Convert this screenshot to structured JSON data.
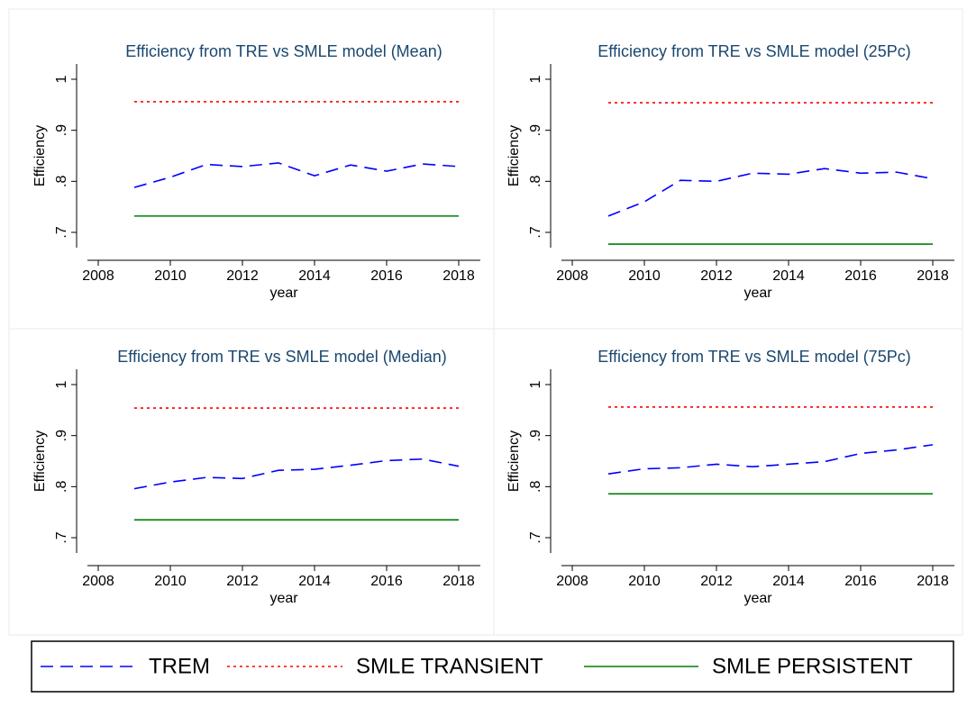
{
  "legend": {
    "items": [
      {
        "name": "TREM",
        "color": "#0000ff",
        "style": "dash"
      },
      {
        "name": "SMLE TRANSIENT",
        "color": "#ff0000",
        "style": "dot"
      },
      {
        "name": "SMLE PERSISTENT",
        "color": "#008000",
        "style": "solid"
      }
    ]
  },
  "chart_data": [
    {
      "type": "line",
      "title": "Efficiency from TRE vs SMLE model (Mean)",
      "xlabel": "year",
      "ylabel": "Efficiency",
      "x": [
        2009,
        2010,
        2011,
        2012,
        2013,
        2014,
        2015,
        2016,
        2017,
        2018
      ],
      "series": [
        {
          "values": [
            0.788,
            0.808,
            0.833,
            0.829,
            0.836,
            0.811,
            0.832,
            0.82,
            0.834,
            0.829
          ]
        },
        {
          "values": [
            0.956,
            0.956,
            0.956,
            0.956,
            0.956,
            0.956,
            0.956,
            0.956,
            0.956,
            0.956
          ]
        },
        {
          "values": [
            0.732,
            0.732,
            0.732,
            0.732,
            0.732,
            0.732,
            0.732,
            0.732,
            0.732,
            0.732
          ]
        }
      ],
      "xlim": [
        2007.7,
        2018.6
      ],
      "xticks": [
        2008,
        2010,
        2012,
        2014,
        2016,
        2018
      ],
      "ylim": [
        0.67,
        1.03
      ],
      "yticks": [
        {
          "value": 0.7,
          "label": ".7"
        },
        {
          "value": 0.8,
          "label": ".8"
        },
        {
          "value": 0.9,
          "label": ".9"
        },
        1
      ]
    },
    {
      "type": "line",
      "title": "Efficiency from TRE vs SMLE model (25Pc)",
      "xlabel": "year",
      "ylabel": "Efficiency",
      "x": [
        2009,
        2010,
        2011,
        2012,
        2013,
        2014,
        2015,
        2016,
        2017,
        2018
      ],
      "series": [
        {
          "values": [
            0.732,
            0.76,
            0.802,
            0.8,
            0.816,
            0.814,
            0.825,
            0.816,
            0.818,
            0.805
          ]
        },
        {
          "values": [
            0.954,
            0.954,
            0.954,
            0.954,
            0.954,
            0.954,
            0.954,
            0.954,
            0.954,
            0.954
          ]
        },
        {
          "values": [
            0.677,
            0.677,
            0.677,
            0.677,
            0.677,
            0.677,
            0.677,
            0.677,
            0.677,
            0.677
          ]
        }
      ],
      "xlim": [
        2007.7,
        2018.6
      ],
      "xticks": [
        2008,
        2010,
        2012,
        2014,
        2016,
        2018
      ],
      "ylim": [
        0.67,
        1.03
      ],
      "yticks": [
        {
          "value": 0.7,
          "label": ".7"
        },
        {
          "value": 0.8,
          "label": ".8"
        },
        {
          "value": 0.9,
          "label": ".9"
        },
        1
      ]
    },
    {
      "type": "line",
      "title": "Efficiency from TRE vs SMLE model (Median)",
      "xlabel": "year",
      "ylabel": "Efficiency",
      "x": [
        2009,
        2010,
        2011,
        2012,
        2013,
        2014,
        2015,
        2016,
        2017,
        2018
      ],
      "series": [
        {
          "values": [
            0.796,
            0.809,
            0.818,
            0.816,
            0.832,
            0.834,
            0.842,
            0.851,
            0.854,
            0.84
          ]
        },
        {
          "values": [
            0.954,
            0.954,
            0.954,
            0.954,
            0.954,
            0.954,
            0.954,
            0.954,
            0.954,
            0.954
          ]
        },
        {
          "values": [
            0.735,
            0.735,
            0.735,
            0.735,
            0.735,
            0.735,
            0.735,
            0.735,
            0.735,
            0.735
          ]
        }
      ],
      "xlim": [
        2007.7,
        2018.6
      ],
      "xticks": [
        2008,
        2010,
        2012,
        2014,
        2016,
        2018
      ],
      "ylim": [
        0.67,
        1.03
      ],
      "yticks": [
        {
          "value": 0.7,
          "label": ".7"
        },
        {
          "value": 0.8,
          "label": ".8"
        },
        {
          "value": 0.9,
          "label": ".9"
        },
        1
      ]
    },
    {
      "type": "line",
      "title": "Efficiency from TRE vs SMLE model (75Pc)",
      "xlabel": "year",
      "ylabel": "Efficiency",
      "x": [
        2009,
        2010,
        2011,
        2012,
        2013,
        2014,
        2015,
        2016,
        2017,
        2018
      ],
      "series": [
        {
          "values": [
            0.825,
            0.835,
            0.837,
            0.844,
            0.839,
            0.844,
            0.849,
            0.865,
            0.872,
            0.882
          ]
        },
        {
          "values": [
            0.956,
            0.956,
            0.956,
            0.956,
            0.956,
            0.956,
            0.956,
            0.956,
            0.956,
            0.956
          ]
        },
        {
          "values": [
            0.786,
            0.786,
            0.786,
            0.786,
            0.786,
            0.786,
            0.786,
            0.786,
            0.786,
            0.786
          ]
        }
      ],
      "xlim": [
        2007.7,
        2018.6
      ],
      "xticks": [
        2008,
        2010,
        2012,
        2014,
        2016,
        2018
      ],
      "ylim": [
        0.67,
        1.03
      ],
      "yticks": [
        {
          "value": 0.7,
          "label": ".7"
        },
        {
          "value": 0.8,
          "label": ".8"
        },
        {
          "value": 0.9,
          "label": ".9"
        },
        1
      ]
    }
  ]
}
